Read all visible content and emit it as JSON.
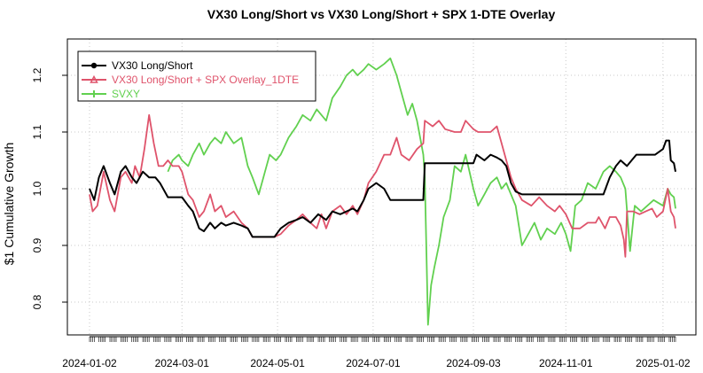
{
  "chart_data": {
    "type": "line",
    "title": "VX30 Long/Short vs VX30 Long/Short + SPX 1-DTE Overlay",
    "xlabel": "",
    "ylabel": "$1 Cumulative Growth",
    "x_tick_labels": [
      "2024-01-02",
      "2024-03-01",
      "2024-05-01",
      "2024-07-01",
      "2024-09-03",
      "2024-11-01",
      "2025-01-02"
    ],
    "y_ticks": [
      0.8,
      0.9,
      1.0,
      1.1,
      1.2
    ],
    "y_tick_labels": [
      "0.8",
      "0.9",
      "1.0",
      "1.1",
      "1.2"
    ],
    "xlim": [
      "2024-01-02",
      "2025-01-10"
    ],
    "ylim": [
      0.75,
      1.25
    ],
    "grid": true,
    "legend_position": "top-left",
    "series": [
      {
        "name": "VX30 Long/Short",
        "color": "#000000",
        "points": [
          [
            "2024-01-02",
            1.0
          ],
          [
            "2024-01-05",
            0.98
          ],
          [
            "2024-01-08",
            1.02
          ],
          [
            "2024-01-11",
            1.04
          ],
          [
            "2024-01-15",
            1.01
          ],
          [
            "2024-01-18",
            0.99
          ],
          [
            "2024-01-22",
            1.03
          ],
          [
            "2024-01-25",
            1.04
          ],
          [
            "2024-01-29",
            1.02
          ],
          [
            "2024-02-01",
            1.01
          ],
          [
            "2024-02-05",
            1.03
          ],
          [
            "2024-02-09",
            1.02
          ],
          [
            "2024-02-13",
            1.02
          ],
          [
            "2024-02-16",
            1.01
          ],
          [
            "2024-02-21",
            0.985
          ],
          [
            "2024-02-26",
            0.985
          ],
          [
            "2024-03-01",
            0.985
          ],
          [
            "2024-03-05",
            0.97
          ],
          [
            "2024-03-08",
            0.96
          ],
          [
            "2024-03-12",
            0.93
          ],
          [
            "2024-03-15",
            0.925
          ],
          [
            "2024-03-19",
            0.94
          ],
          [
            "2024-03-22",
            0.93
          ],
          [
            "2024-03-26",
            0.94
          ],
          [
            "2024-03-29",
            0.935
          ],
          [
            "2024-04-03",
            0.94
          ],
          [
            "2024-04-08",
            0.935
          ],
          [
            "2024-04-12",
            0.93
          ],
          [
            "2024-04-15",
            0.915
          ],
          [
            "2024-04-22",
            0.915
          ],
          [
            "2024-04-29",
            0.915
          ],
          [
            "2024-05-03",
            0.93
          ],
          [
            "2024-05-08",
            0.94
          ],
          [
            "2024-05-13",
            0.945
          ],
          [
            "2024-05-17",
            0.95
          ],
          [
            "2024-05-22",
            0.94
          ],
          [
            "2024-05-27",
            0.955
          ],
          [
            "2024-06-01",
            0.945
          ],
          [
            "2024-06-05",
            0.96
          ],
          [
            "2024-06-10",
            0.955
          ],
          [
            "2024-06-14",
            0.96
          ],
          [
            "2024-06-18",
            0.965
          ],
          [
            "2024-06-21",
            0.96
          ],
          [
            "2024-06-25",
            0.98
          ],
          [
            "2024-06-28",
            1.0
          ],
          [
            "2024-07-03",
            1.01
          ],
          [
            "2024-07-08",
            1.0
          ],
          [
            "2024-07-12",
            0.98
          ],
          [
            "2024-07-19",
            0.98
          ],
          [
            "2024-07-26",
            0.98
          ],
          [
            "2024-08-02",
            0.98
          ],
          [
            "2024-08-03",
            1.045
          ],
          [
            "2024-08-12",
            1.045
          ],
          [
            "2024-08-26",
            1.045
          ],
          [
            "2024-09-03",
            1.045
          ],
          [
            "2024-09-05",
            1.06
          ],
          [
            "2024-09-10",
            1.05
          ],
          [
            "2024-09-14",
            1.06
          ],
          [
            "2024-09-18",
            1.055
          ],
          [
            "2024-09-21",
            1.05
          ],
          [
            "2024-09-24",
            1.04
          ],
          [
            "2024-09-27",
            1.01
          ],
          [
            "2024-09-30",
            0.995
          ],
          [
            "2024-10-04",
            0.99
          ],
          [
            "2024-10-10",
            0.99
          ],
          [
            "2024-10-20",
            0.99
          ],
          [
            "2024-11-01",
            0.99
          ],
          [
            "2024-11-15",
            0.99
          ],
          [
            "2024-11-25",
            0.99
          ],
          [
            "2024-11-29",
            1.02
          ],
          [
            "2024-12-03",
            1.04
          ],
          [
            "2024-12-06",
            1.05
          ],
          [
            "2024-12-10",
            1.04
          ],
          [
            "2024-12-13",
            1.05
          ],
          [
            "2024-12-16",
            1.06
          ],
          [
            "2024-12-22",
            1.06
          ],
          [
            "2024-12-28",
            1.06
          ],
          [
            "2025-01-02",
            1.07
          ],
          [
            "2025-01-04",
            1.085
          ],
          [
            "2025-01-06",
            1.085
          ],
          [
            "2025-01-07",
            1.05
          ],
          [
            "2025-01-09",
            1.045
          ],
          [
            "2025-01-10",
            1.03
          ]
        ]
      },
      {
        "name": "VX30 Long/Short + SPX Overlay_1DTE",
        "color": "#DF536B",
        "points": [
          [
            "2024-01-02",
            0.99
          ],
          [
            "2024-01-04",
            0.96
          ],
          [
            "2024-01-07",
            0.97
          ],
          [
            "2024-01-11",
            1.03
          ],
          [
            "2024-01-15",
            0.98
          ],
          [
            "2024-01-18",
            0.96
          ],
          [
            "2024-01-22",
            1.02
          ],
          [
            "2024-01-25",
            1.03
          ],
          [
            "2024-01-29",
            1.01
          ],
          [
            "2024-01-31",
            1.04
          ],
          [
            "2024-02-03",
            1.02
          ],
          [
            "2024-02-06",
            1.07
          ],
          [
            "2024-02-09",
            1.13
          ],
          [
            "2024-02-12",
            1.08
          ],
          [
            "2024-02-15",
            1.04
          ],
          [
            "2024-02-18",
            1.04
          ],
          [
            "2024-02-21",
            1.05
          ],
          [
            "2024-02-24",
            1.04
          ],
          [
            "2024-02-28",
            1.04
          ],
          [
            "2024-03-01",
            1.03
          ],
          [
            "2024-03-05",
            0.99
          ],
          [
            "2024-03-08",
            0.98
          ],
          [
            "2024-03-12",
            0.95
          ],
          [
            "2024-03-15",
            0.96
          ],
          [
            "2024-03-19",
            0.99
          ],
          [
            "2024-03-22",
            0.96
          ],
          [
            "2024-03-26",
            0.97
          ],
          [
            "2024-03-29",
            0.95
          ],
          [
            "2024-04-03",
            0.96
          ],
          [
            "2024-04-08",
            0.94
          ],
          [
            "2024-04-12",
            0.93
          ],
          [
            "2024-04-15",
            0.915
          ],
          [
            "2024-04-22",
            0.915
          ],
          [
            "2024-04-29",
            0.915
          ],
          [
            "2024-05-03",
            0.92
          ],
          [
            "2024-05-08",
            0.935
          ],
          [
            "2024-05-13",
            0.945
          ],
          [
            "2024-05-17",
            0.955
          ],
          [
            "2024-05-22",
            0.94
          ],
          [
            "2024-05-26",
            0.93
          ],
          [
            "2024-05-29",
            0.955
          ],
          [
            "2024-06-01",
            0.93
          ],
          [
            "2024-06-05",
            0.96
          ],
          [
            "2024-06-10",
            0.97
          ],
          [
            "2024-06-14",
            0.955
          ],
          [
            "2024-06-18",
            0.97
          ],
          [
            "2024-06-21",
            0.955
          ],
          [
            "2024-06-25",
            0.98
          ],
          [
            "2024-06-28",
            1.01
          ],
          [
            "2024-07-03",
            1.03
          ],
          [
            "2024-07-08",
            1.06
          ],
          [
            "2024-07-12",
            1.06
          ],
          [
            "2024-07-16",
            1.09
          ],
          [
            "2024-07-19",
            1.06
          ],
          [
            "2024-07-24",
            1.05
          ],
          [
            "2024-07-29",
            1.07
          ],
          [
            "2024-08-02",
            1.08
          ],
          [
            "2024-08-03",
            1.12
          ],
          [
            "2024-08-08",
            1.11
          ],
          [
            "2024-08-12",
            1.12
          ],
          [
            "2024-08-16",
            1.105
          ],
          [
            "2024-08-22",
            1.1
          ],
          [
            "2024-08-26",
            1.1
          ],
          [
            "2024-08-29",
            1.12
          ],
          [
            "2024-09-03",
            1.105
          ],
          [
            "2024-09-06",
            1.1
          ],
          [
            "2024-09-10",
            1.1
          ],
          [
            "2024-09-14",
            1.1
          ],
          [
            "2024-09-18",
            1.11
          ],
          [
            "2024-09-21",
            1.08
          ],
          [
            "2024-09-24",
            1.05
          ],
          [
            "2024-09-27",
            1.02
          ],
          [
            "2024-09-30",
            1.0
          ],
          [
            "2024-10-04",
            0.98
          ],
          [
            "2024-10-10",
            0.97
          ],
          [
            "2024-10-15",
            0.985
          ],
          [
            "2024-10-20",
            0.97
          ],
          [
            "2024-10-25",
            0.96
          ],
          [
            "2024-10-28",
            0.97
          ],
          [
            "2024-11-01",
            0.955
          ],
          [
            "2024-11-05",
            0.93
          ],
          [
            "2024-11-10",
            0.93
          ],
          [
            "2024-11-15",
            0.94
          ],
          [
            "2024-11-20",
            0.94
          ],
          [
            "2024-11-22",
            0.95
          ],
          [
            "2024-11-26",
            0.93
          ],
          [
            "2024-11-29",
            0.95
          ],
          [
            "2024-12-03",
            0.95
          ],
          [
            "2024-12-06",
            0.935
          ],
          [
            "2024-12-08",
            0.91
          ],
          [
            "2024-12-09",
            0.88
          ],
          [
            "2024-12-10",
            0.96
          ],
          [
            "2024-12-14",
            0.96
          ],
          [
            "2024-12-18",
            0.955
          ],
          [
            "2024-12-22",
            0.96
          ],
          [
            "2024-12-26",
            0.965
          ],
          [
            "2024-12-29",
            0.95
          ],
          [
            "2025-01-02",
            0.96
          ],
          [
            "2025-01-05",
            1.0
          ],
          [
            "2025-01-07",
            0.96
          ],
          [
            "2025-01-09",
            0.95
          ],
          [
            "2025-01-10",
            0.93
          ]
        ]
      },
      {
        "name": "SVXY",
        "color": "#61D04F",
        "points": [
          [
            "2024-02-21",
            1.03
          ],
          [
            "2024-02-24",
            1.05
          ],
          [
            "2024-02-28",
            1.06
          ],
          [
            "2024-03-01",
            1.05
          ],
          [
            "2024-03-05",
            1.04
          ],
          [
            "2024-03-08",
            1.06
          ],
          [
            "2024-03-12",
            1.08
          ],
          [
            "2024-03-15",
            1.06
          ],
          [
            "2024-03-19",
            1.08
          ],
          [
            "2024-03-22",
            1.09
          ],
          [
            "2024-03-26",
            1.08
          ],
          [
            "2024-03-29",
            1.1
          ],
          [
            "2024-04-03",
            1.08
          ],
          [
            "2024-04-08",
            1.09
          ],
          [
            "2024-04-12",
            1.04
          ],
          [
            "2024-04-15",
            1.02
          ],
          [
            "2024-04-19",
            0.99
          ],
          [
            "2024-04-23",
            1.03
          ],
          [
            "2024-04-26",
            1.06
          ],
          [
            "2024-04-30",
            1.05
          ],
          [
            "2024-05-03",
            1.06
          ],
          [
            "2024-05-08",
            1.09
          ],
          [
            "2024-05-13",
            1.11
          ],
          [
            "2024-05-17",
            1.13
          ],
          [
            "2024-05-22",
            1.12
          ],
          [
            "2024-05-26",
            1.14
          ],
          [
            "2024-06-01",
            1.12
          ],
          [
            "2024-06-05",
            1.16
          ],
          [
            "2024-06-10",
            1.18
          ],
          [
            "2024-06-14",
            1.2
          ],
          [
            "2024-06-18",
            1.21
          ],
          [
            "2024-06-21",
            1.2
          ],
          [
            "2024-06-25",
            1.21
          ],
          [
            "2024-06-28",
            1.22
          ],
          [
            "2024-07-03",
            1.21
          ],
          [
            "2024-07-08",
            1.22
          ],
          [
            "2024-07-12",
            1.23
          ],
          [
            "2024-07-16",
            1.2
          ],
          [
            "2024-07-19",
            1.17
          ],
          [
            "2024-07-23",
            1.13
          ],
          [
            "2024-07-26",
            1.15
          ],
          [
            "2024-07-29",
            1.12
          ],
          [
            "2024-08-02",
            1.06
          ],
          [
            "2024-08-03",
            1.02
          ],
          [
            "2024-08-05",
            0.76
          ],
          [
            "2024-08-07",
            0.83
          ],
          [
            "2024-08-09",
            0.86
          ],
          [
            "2024-08-12",
            0.9
          ],
          [
            "2024-08-15",
            0.95
          ],
          [
            "2024-08-19",
            0.98
          ],
          [
            "2024-08-22",
            1.04
          ],
          [
            "2024-08-26",
            1.03
          ],
          [
            "2024-08-29",
            1.06
          ],
          [
            "2024-09-03",
            1.0
          ],
          [
            "2024-09-06",
            0.97
          ],
          [
            "2024-09-10",
            0.99
          ],
          [
            "2024-09-14",
            1.01
          ],
          [
            "2024-09-18",
            1.02
          ],
          [
            "2024-09-21",
            1.0
          ],
          [
            "2024-09-24",
            1.01
          ],
          [
            "2024-09-27",
            0.99
          ],
          [
            "2024-09-30",
            0.97
          ],
          [
            "2024-10-04",
            0.9
          ],
          [
            "2024-10-08",
            0.92
          ],
          [
            "2024-10-12",
            0.94
          ],
          [
            "2024-10-16",
            0.91
          ],
          [
            "2024-10-20",
            0.93
          ],
          [
            "2024-10-25",
            0.92
          ],
          [
            "2024-10-29",
            0.94
          ],
          [
            "2024-11-01",
            0.92
          ],
          [
            "2024-11-04",
            0.89
          ],
          [
            "2024-11-07",
            0.97
          ],
          [
            "2024-11-11",
            0.98
          ],
          [
            "2024-11-15",
            1.01
          ],
          [
            "2024-11-20",
            1.0
          ],
          [
            "2024-11-25",
            1.03
          ],
          [
            "2024-11-29",
            1.04
          ],
          [
            "2024-12-03",
            1.03
          ],
          [
            "2024-12-06",
            1.02
          ],
          [
            "2024-12-09",
            1.0
          ],
          [
            "2024-12-12",
            0.89
          ],
          [
            "2024-12-15",
            0.97
          ],
          [
            "2024-12-19",
            0.96
          ],
          [
            "2024-12-23",
            0.97
          ],
          [
            "2024-12-27",
            0.98
          ],
          [
            "2025-01-02",
            0.97
          ],
          [
            "2025-01-05",
            1.0
          ],
          [
            "2025-01-07",
            0.99
          ],
          [
            "2025-01-09",
            0.985
          ],
          [
            "2025-01-10",
            0.965
          ]
        ]
      }
    ]
  }
}
